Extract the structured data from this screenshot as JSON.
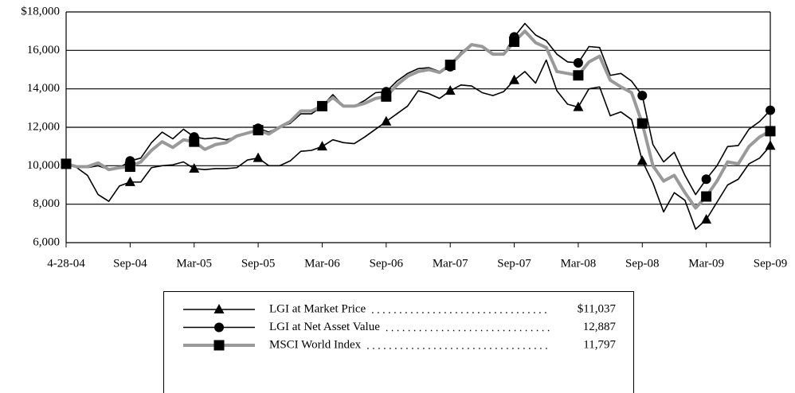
{
  "chart_data": {
    "type": "line",
    "categories": [
      "4-28-04",
      null,
      null,
      null,
      null,
      null,
      "Sep-04",
      null,
      null,
      null,
      null,
      null,
      "Mar-05",
      null,
      null,
      null,
      null,
      null,
      "Sep-05",
      null,
      null,
      null,
      null,
      null,
      "Mar-06",
      null,
      null,
      null,
      null,
      null,
      "Sep-06",
      null,
      null,
      null,
      null,
      null,
      "Mar-07",
      null,
      null,
      null,
      null,
      null,
      "Sep-07",
      null,
      null,
      null,
      null,
      null,
      "Mar-08",
      null,
      null,
      null,
      null,
      null,
      "Sep-08",
      null,
      null,
      null,
      null,
      null,
      "Mar-09",
      null,
      null,
      null,
      null,
      null,
      "Sep-09"
    ],
    "series": [
      {
        "name": "LGI at Market Price",
        "color": "#000000",
        "marker": "triangle",
        "legend_value": "$11,037",
        "values": [
          10100,
          9900,
          9500,
          8500,
          8150,
          8950,
          9150,
          9150,
          9900,
          10000,
          10050,
          10200,
          9850,
          9800,
          9850,
          9850,
          9900,
          10300,
          10400,
          10000,
          10000,
          10250,
          10750,
          10800,
          11000,
          11350,
          11200,
          11150,
          11500,
          11900,
          12300,
          12700,
          13100,
          13900,
          13750,
          13500,
          13900,
          14200,
          14150,
          13800,
          13650,
          13850,
          14450,
          14900,
          14300,
          15500,
          13900,
          13200,
          13050,
          14000,
          14100,
          12600,
          12800,
          12400,
          10250,
          9100,
          7600,
          8600,
          8200,
          6700,
          7200,
          8100,
          9000,
          9300,
          10100,
          10400,
          11037
        ]
      },
      {
        "name": "LGI at Net Asset Value",
        "color": "#000000",
        "marker": "circle",
        "legend_value": "12,887",
        "values": [
          10100,
          9950,
          9900,
          10000,
          9800,
          9900,
          10250,
          10400,
          11200,
          11750,
          11400,
          11900,
          11500,
          11400,
          11450,
          11350,
          11500,
          11700,
          11950,
          11750,
          12000,
          12200,
          12700,
          12700,
          13100,
          13700,
          13100,
          13100,
          13400,
          13800,
          13850,
          14400,
          14800,
          15050,
          15100,
          14900,
          15150,
          15900,
          16300,
          16200,
          15800,
          15800,
          16700,
          17400,
          16800,
          16500,
          15800,
          15400,
          15350,
          16200,
          16150,
          14700,
          14800,
          14400,
          13650,
          11100,
          10200,
          10700,
          9500,
          8500,
          9300,
          10000,
          11000,
          11050,
          11900,
          12300,
          12887
        ]
      },
      {
        "name": "MSCI World Index",
        "color": "#999999",
        "marker": "square",
        "legend_value": "11,797",
        "values": [
          10100,
          9950,
          9950,
          10150,
          9800,
          9900,
          9950,
          10200,
          10800,
          11250,
          10950,
          11350,
          11250,
          10850,
          11100,
          11200,
          11550,
          11700,
          11850,
          11650,
          12000,
          12300,
          12850,
          12850,
          13100,
          13550,
          13100,
          13100,
          13250,
          13500,
          13600,
          14200,
          14650,
          14900,
          15000,
          14850,
          15250,
          15800,
          16300,
          16200,
          15800,
          15800,
          16450,
          17000,
          16400,
          16150,
          14900,
          14800,
          14700,
          15400,
          15700,
          14450,
          14100,
          13800,
          12200,
          10000,
          9200,
          9500,
          8600,
          7800,
          8400,
          9200,
          10200,
          10100,
          11000,
          11500,
          11797
        ]
      }
    ],
    "ylim": [
      6000,
      18000
    ],
    "yticks": [
      {
        "value": 6000,
        "label": "6,000"
      },
      {
        "value": 8000,
        "label": "8,000"
      },
      {
        "value": 10000,
        "label": "10,000"
      },
      {
        "value": 12000,
        "label": "12,000"
      },
      {
        "value": 14000,
        "label": "14,000"
      },
      {
        "value": 16000,
        "label": "16,000"
      },
      {
        "value": 18000,
        "label": "$18,000"
      }
    ],
    "grid": true
  }
}
